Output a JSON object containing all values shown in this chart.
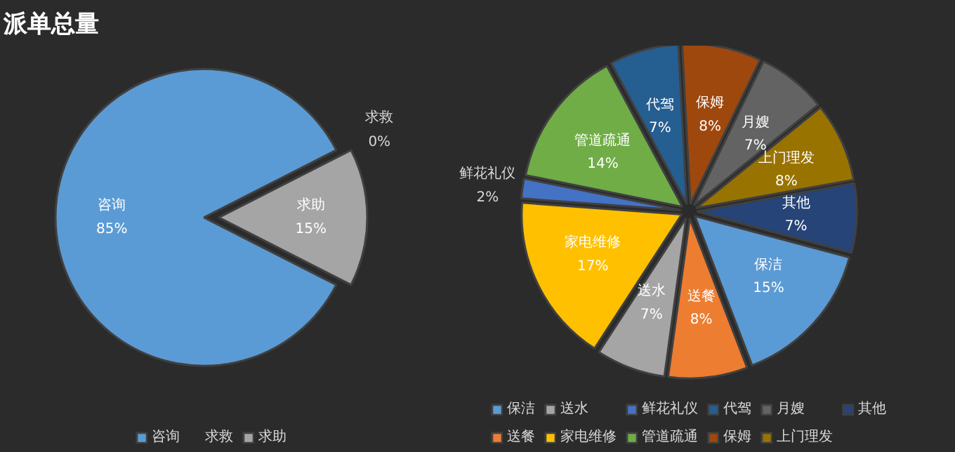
{
  "chart_data": [
    {
      "type": "pie",
      "title": "派单总量",
      "categories": [
        "咨询",
        "求救",
        "求助"
      ],
      "values": [
        85,
        0,
        15
      ],
      "value_labels": [
        "85%",
        "0%",
        "15%"
      ],
      "colors": [
        "#5b9bd5",
        "#ed7d31",
        "#a5a5a5"
      ],
      "legend": "bottom"
    },
    {
      "type": "pie",
      "categories": [
        "保洁",
        "送餐",
        "送水",
        "家电维修",
        "鲜花礼仪",
        "管道疏通",
        "代驾",
        "保姆",
        "月嫂",
        "上门理发",
        "其他"
      ],
      "values": [
        15,
        8,
        7,
        17,
        2,
        14,
        7,
        8,
        7,
        8,
        7
      ],
      "value_labels": [
        "15%",
        "8%",
        "7%",
        "17%",
        "2%",
        "14%",
        "7%",
        "8%",
        "7%",
        "8%",
        "7%"
      ],
      "colors": [
        "#5b9bd5",
        "#ed7d31",
        "#a5a5a5",
        "#ffc000",
        "#4472c4",
        "#70ad47",
        "#255e91",
        "#9e480e",
        "#636363",
        "#997300",
        "#264478"
      ],
      "legend": "bottom"
    }
  ]
}
